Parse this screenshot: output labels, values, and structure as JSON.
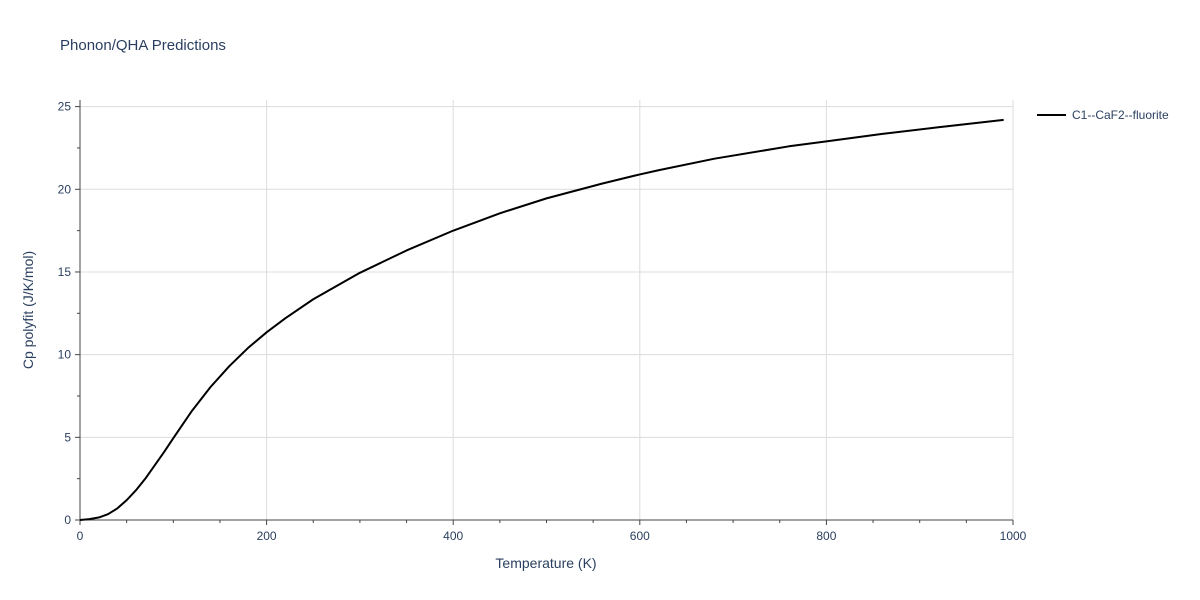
{
  "chart_data": {
    "type": "line",
    "title": "Phonon/QHA Predictions",
    "xlabel": "Temperature (K)",
    "ylabel": "Cp polyfit (J/K/mol)",
    "xlim": [
      0,
      1000
    ],
    "ylim": [
      0,
      25.4
    ],
    "xticks": [
      0,
      200,
      400,
      600,
      800,
      1000
    ],
    "yticks": [
      0,
      5,
      10,
      15,
      20,
      25
    ],
    "xtick_labels": [
      "0",
      "200",
      "400",
      "600",
      "800",
      "1000"
    ],
    "ytick_labels": [
      "0",
      "5",
      "10",
      "15",
      "20",
      "25"
    ],
    "grid": true,
    "legend_position": "top-right outside",
    "series": [
      {
        "name": "C1--CaF2--fluorite",
        "color": "#000000",
        "x": [
          0,
          10,
          20,
          30,
          40,
          50,
          60,
          70,
          80,
          90,
          100,
          120,
          140,
          160,
          180,
          200,
          220,
          250,
          300,
          350,
          400,
          450,
          500,
          560,
          600,
          620,
          680,
          760,
          800,
          860,
          920,
          990
        ],
        "y": [
          0,
          0.05,
          0.15,
          0.35,
          0.7,
          1.2,
          1.8,
          2.5,
          3.3,
          4.1,
          4.95,
          6.6,
          8.05,
          9.3,
          10.4,
          11.35,
          12.2,
          13.35,
          14.95,
          16.3,
          17.5,
          18.55,
          19.45,
          20.35,
          20.9,
          21.15,
          21.85,
          22.6,
          22.9,
          23.35,
          23.75,
          24.2
        ]
      }
    ]
  }
}
